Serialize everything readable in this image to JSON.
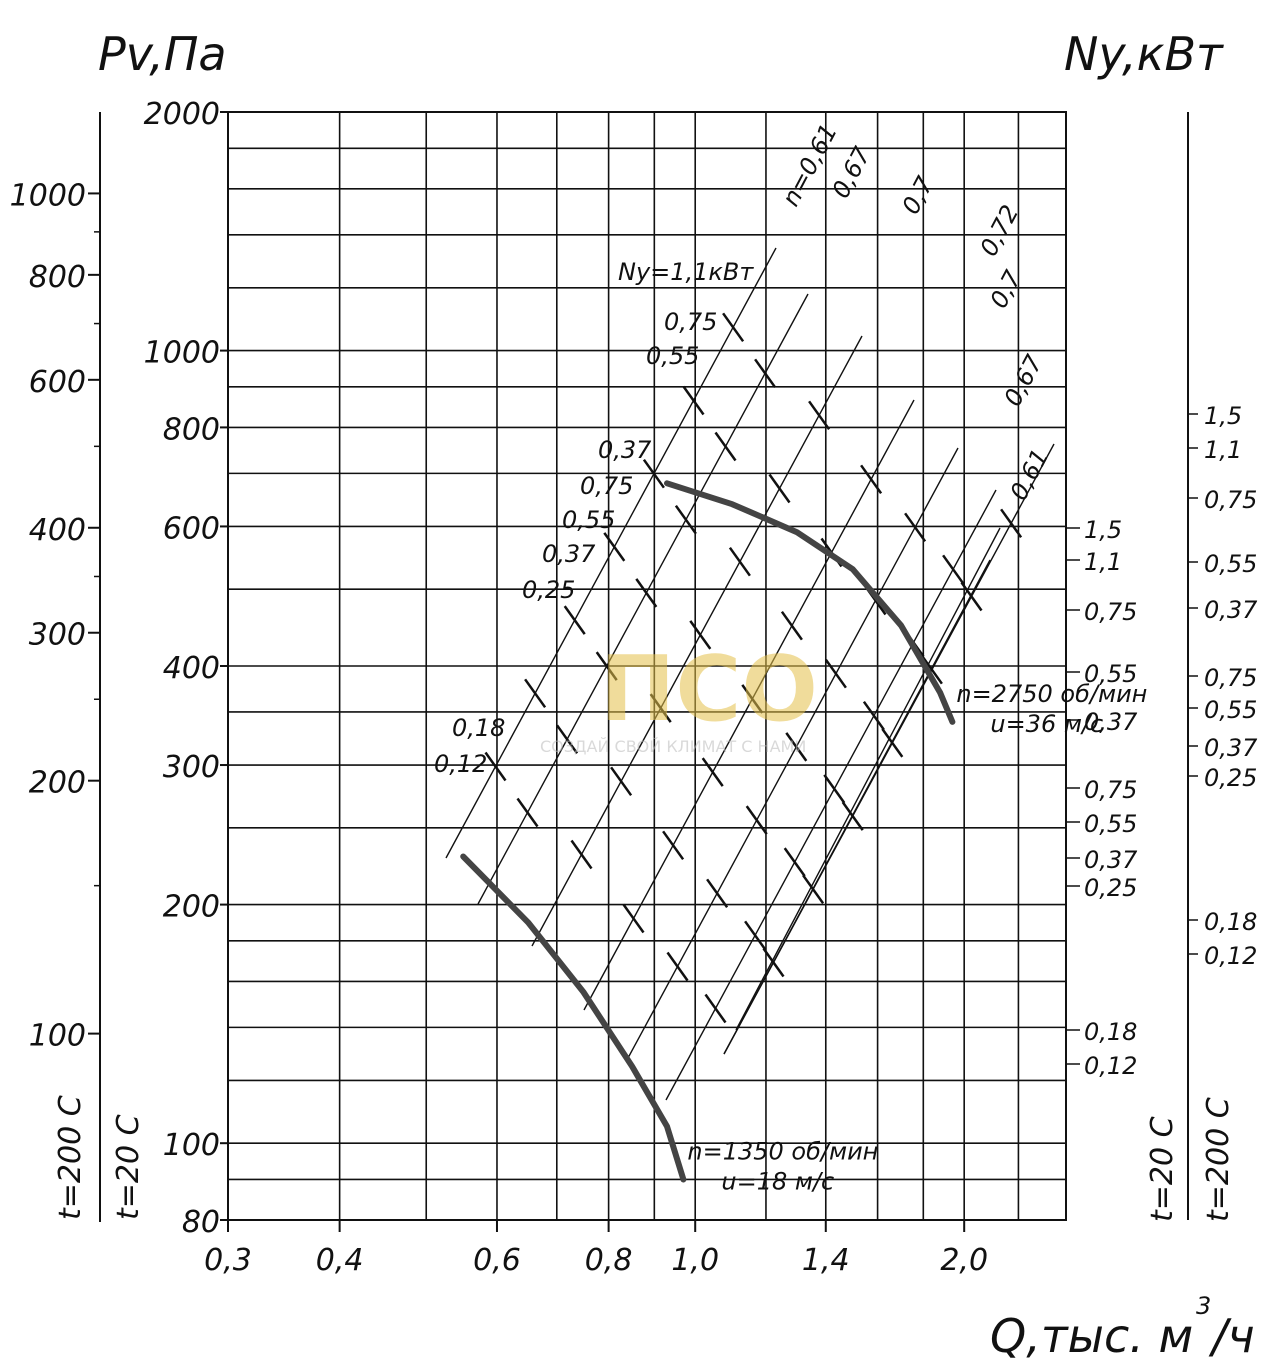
{
  "chart_data": {
    "type": "line",
    "title": "",
    "ylabel_left": "Pv,Па",
    "ylabel_right": "Ny,кВт",
    "xlabel": "Q,тыс. м",
    "xlabel_sup": "3",
    "xlabel_tail": "/ч",
    "x_scale": "log",
    "y_scale": "log",
    "xlim": [
      0.3,
      2.6
    ],
    "ylim": [
      80,
      2000
    ],
    "x_ticks": [
      "0,3",
      "0,4",
      "0,6",
      "0,8",
      "1,0",
      "1,4",
      "2,0"
    ],
    "y_ticks": [
      "2000",
      "1000",
      "800",
      "600",
      "400",
      "300",
      "200",
      "100",
      "80"
    ],
    "outer_left_ticks": [
      "1000",
      "800",
      "600",
      "400",
      "300",
      "200",
      "100"
    ],
    "temp_left": [
      "t=200 С",
      "t=20 С"
    ],
    "temp_right": [
      "t=20 С",
      "t=200 С"
    ],
    "series": [
      {
        "name": "n=2750 об/мин",
        "note": "u=36 м/с",
        "x": [
          0.93,
          1.1,
          1.3,
          1.5,
          1.7,
          1.88,
          1.94
        ],
        "y": [
          680,
          640,
          590,
          530,
          450,
          370,
          340
        ]
      },
      {
        "name": "n=1350 об/мин",
        "note": "u=18 м/с",
        "x": [
          0.55,
          0.65,
          0.75,
          0.85,
          0.93,
          0.97
        ],
        "y": [
          230,
          190,
          155,
          125,
          105,
          90
        ]
      }
    ],
    "efficiency_labels": [
      "n=0,61",
      "0,67",
      "0,7",
      "0,72",
      "0,7",
      "0,67",
      "0,61"
    ],
    "power_labels_upper": [
      "Ny=1,1кВт",
      "0,75",
      "0,55",
      "0,37",
      "0,75",
      "0,55",
      "0,37",
      "0,25"
    ],
    "power_labels_lower": [
      "0,18",
      "0,12"
    ],
    "right_power_inner": [
      "1,5",
      "1,1",
      "0,75",
      "0,55",
      "0,37",
      "0,75",
      "0,55",
      "0,37",
      "0,25",
      "0,18",
      "0,12"
    ],
    "right_power_outer": [
      "1,5",
      "1,1",
      "0,75",
      "0,55",
      "0,37",
      "0,75",
      "0,55",
      "0,37",
      "0,25",
      "0,18",
      "0,12"
    ],
    "grid": true
  },
  "watermark": {
    "brand": "ПСО",
    "slogan": "СОЗДАЙ СВОЙ КЛИМАТ С НАМИ"
  },
  "colors": {
    "line": "#111111",
    "curve": "#444444",
    "watermark": "#e4c14a"
  }
}
